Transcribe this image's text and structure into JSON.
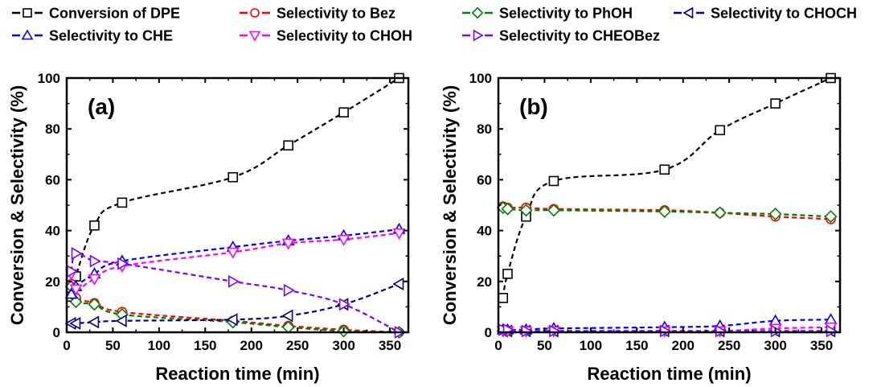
{
  "chart_data": [
    {
      "type": "line",
      "panel_label": "(a)",
      "xlabel": "Reaction time (min)",
      "ylabel": "Conversion & Selectivity (%)",
      "xlim": [
        0,
        370
      ],
      "ylim": [
        0,
        100
      ],
      "xticks": [
        0,
        50,
        100,
        150,
        200,
        250,
        300,
        350
      ],
      "yticks": [
        0,
        20,
        40,
        60,
        80,
        100
      ],
      "grid": false,
      "series": [
        {
          "name": "Conversion of DPE",
          "color": "#000000",
          "marker": "square",
          "x": [
            5,
            10,
            30,
            60,
            180,
            240,
            300,
            360
          ],
          "y": [
            14,
            22,
            42,
            51,
            61,
            73.5,
            86.5,
            100
          ]
        },
        {
          "name": "Selectivity to Bez",
          "color": "#ff0000",
          "marker": "circle",
          "x": [
            5,
            10,
            30,
            60,
            180,
            240,
            300,
            360
          ],
          "y": [
            19,
            13.5,
            11.5,
            8,
            4.5,
            2.5,
            1,
            0
          ]
        },
        {
          "name": "Selectivity to PhOH",
          "color": "#008000",
          "marker": "diamond",
          "x": [
            5,
            10,
            30,
            60,
            180,
            240,
            300,
            360
          ],
          "y": [
            18,
            12,
            11,
            7,
            4,
            2,
            0.5,
            0
          ]
        },
        {
          "name": "Selectivity to CHOCH",
          "color": "#000080",
          "marker": "triangle-left",
          "x": [
            5,
            10,
            30,
            60,
            180,
            240,
            300,
            360
          ],
          "y": [
            3.5,
            3.5,
            4,
            4.5,
            5,
            6.5,
            11,
            19
          ]
        },
        {
          "name": "Selectivity to CHE",
          "color": "#0000ff",
          "marker": "triangle-up",
          "x": [
            5,
            10,
            30,
            60,
            180,
            240,
            300,
            360
          ],
          "y": [
            15,
            18,
            23,
            28,
            33.5,
            36,
            38,
            40.5
          ]
        },
        {
          "name": "Selectivity to CHOH",
          "color": "#ff00ff",
          "marker": "triangle-down",
          "x": [
            5,
            10,
            30,
            60,
            180,
            240,
            300,
            360
          ],
          "y": [
            23,
            17,
            21,
            26,
            31.5,
            35,
            36.5,
            39
          ]
        },
        {
          "name": "Selectivity to CHEOBez",
          "color": "#8000ff",
          "marker": "triangle-right",
          "x": [
            5,
            10,
            30,
            60,
            180,
            240,
            300,
            360
          ],
          "y": [
            24,
            31,
            28,
            27,
            20,
            16.5,
            11,
            0
          ]
        }
      ]
    },
    {
      "type": "line",
      "panel_label": "(b)",
      "xlabel": "Reaction time (min)",
      "ylabel": "Conversion & Selectivity (%)",
      "xlim": [
        0,
        370
      ],
      "ylim": [
        0,
        100
      ],
      "xticks": [
        0,
        50,
        100,
        150,
        200,
        250,
        300,
        350
      ],
      "yticks": [
        0,
        20,
        40,
        60,
        80,
        100
      ],
      "grid": false,
      "series": [
        {
          "name": "Conversion of DPE",
          "color": "#000000",
          "marker": "square",
          "x": [
            5,
            10,
            30,
            60,
            180,
            240,
            300,
            360
          ],
          "y": [
            13.5,
            23,
            45.5,
            59.5,
            64,
            79.5,
            90,
            100
          ]
        },
        {
          "name": "Selectivity to Bez",
          "color": "#ff0000",
          "marker": "circle",
          "x": [
            5,
            10,
            30,
            60,
            180,
            240,
            300,
            360
          ],
          "y": [
            49.5,
            49,
            49,
            48.5,
            48,
            47,
            45.5,
            44.5
          ]
        },
        {
          "name": "Selectivity to PhOH",
          "color": "#008000",
          "marker": "diamond",
          "x": [
            5,
            10,
            30,
            60,
            180,
            240,
            300,
            360
          ],
          "y": [
            49,
            48.5,
            48,
            48,
            47.5,
            47,
            46.5,
            45.5
          ]
        },
        {
          "name": "Selectivity to CHOCH",
          "color": "#000080",
          "marker": "triangle-left",
          "x": [
            5,
            10,
            30,
            60,
            180,
            240,
            300,
            360
          ],
          "y": [
            0.5,
            0.5,
            0.5,
            0.5,
            0.5,
            0.5,
            0.5,
            0.5
          ]
        },
        {
          "name": "Selectivity to CHE",
          "color": "#0000ff",
          "marker": "triangle-up",
          "x": [
            5,
            10,
            30,
            60,
            180,
            240,
            300,
            360
          ],
          "y": [
            1,
            1,
            1,
            1.5,
            2,
            2.5,
            4.5,
            5
          ]
        },
        {
          "name": "Selectivity to CHOH",
          "color": "#ff00ff",
          "marker": "triangle-down",
          "x": [
            5,
            10,
            30,
            60,
            180,
            240,
            300,
            360
          ],
          "y": [
            0.5,
            0.5,
            0.5,
            0.5,
            0.5,
            0.5,
            1.5,
            2
          ]
        },
        {
          "name": "Selectivity to CHEOBez",
          "color": "#8000ff",
          "marker": "triangle-right",
          "x": [
            5,
            10,
            30,
            60,
            180,
            240,
            300,
            360
          ],
          "y": [
            1,
            1,
            0.5,
            0.5,
            0.5,
            0.5,
            0.5,
            0.5
          ]
        }
      ]
    }
  ],
  "legend": {
    "placement": "top",
    "entries": [
      {
        "label": "Conversion of DPE",
        "color": "#000000",
        "marker": "square"
      },
      {
        "label": "Selectivity to Bez",
        "color": "#ff0000",
        "marker": "circle"
      },
      {
        "label": "Selectivity to PhOH",
        "color": "#008000",
        "marker": "diamond"
      },
      {
        "label": "Selectivity to CHOCH",
        "color": "#000080",
        "marker": "triangle-left"
      },
      {
        "label": "Selectivity to CHE",
        "color": "#0000ff",
        "marker": "triangle-up"
      },
      {
        "label": "Selectivity to CHOH",
        "color": "#ff00ff",
        "marker": "triangle-down"
      },
      {
        "label": "Selectivity to CHEOBez",
        "color": "#8000ff",
        "marker": "triangle-right"
      }
    ]
  }
}
